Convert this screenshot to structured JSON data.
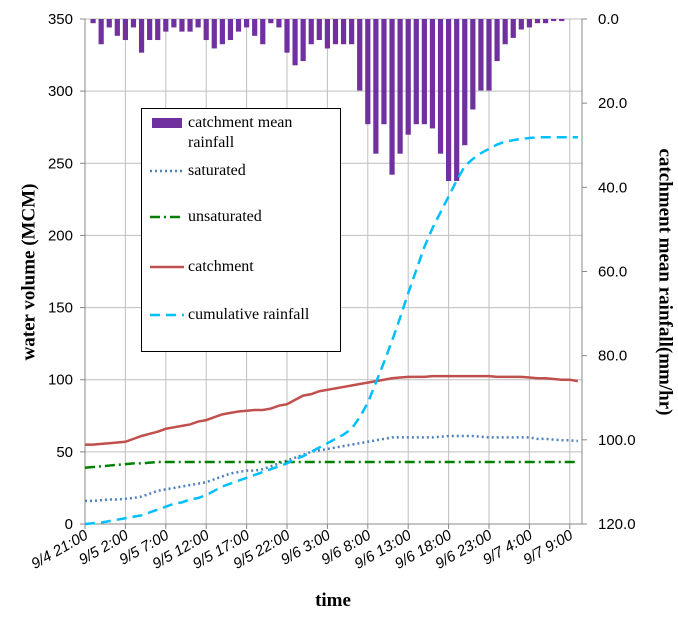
{
  "chart_data": {
    "type": "combo",
    "x_label": "time",
    "y_label": "water volume (MCM)",
    "y2_label": "catchment  mean rainfall(mm/hr)",
    "categories": [
      "9/4 21:00",
      null,
      null,
      null,
      null,
      "9/5 2:00",
      null,
      null,
      null,
      null,
      "9/5 7:00",
      null,
      null,
      null,
      null,
      "9/5 12:00",
      null,
      null,
      null,
      null,
      "9/5 17:00",
      null,
      null,
      null,
      null,
      "9/5 22:00",
      null,
      null,
      null,
      null,
      "9/6 3:00",
      null,
      null,
      null,
      null,
      "9/6 8:00",
      null,
      null,
      null,
      null,
      "9/6 13:00",
      null,
      null,
      null,
      null,
      "9/6 18:00",
      null,
      null,
      null,
      null,
      "9/6 23:00",
      null,
      null,
      null,
      null,
      "9/7 4:00",
      null,
      null,
      null,
      null,
      "9/7 9:00",
      null
    ],
    "ylim": [
      0,
      350
    ],
    "yticks": [
      0,
      50,
      100,
      150,
      200,
      250,
      300,
      350
    ],
    "y2lim": [
      0,
      120
    ],
    "y2_inverted": true,
    "y2ticks": [
      {
        "value": 0,
        "label": "0.0"
      },
      {
        "value": 20,
        "label": "20.0"
      },
      {
        "value": 40,
        "label": "40.0"
      },
      {
        "value": 60,
        "label": "60.0"
      },
      {
        "value": 80,
        "label": "80.0"
      },
      {
        "value": 100,
        "label": "100.0"
      },
      {
        "value": 120,
        "label": "120.0"
      }
    ],
    "grid": true,
    "series": [
      {
        "name": "catchment mean rainfall",
        "type": "bar",
        "axis": "y2",
        "color": "#7030a0",
        "values": [
          0,
          1,
          6,
          2,
          4,
          5,
          2,
          8,
          5,
          5,
          3,
          2,
          3,
          3,
          2,
          5,
          7,
          6,
          5,
          3,
          2,
          4,
          6,
          1,
          2,
          8,
          11,
          10,
          6,
          5,
          7,
          6,
          6,
          6,
          17,
          25,
          32,
          25,
          37,
          32,
          27.5,
          25,
          25,
          26,
          32,
          38.5,
          38.5,
          30,
          21.5,
          17,
          17,
          10,
          6,
          4.5,
          2.5,
          2,
          1,
          1,
          0.5,
          0.5,
          0,
          0
        ]
      },
      {
        "name": "saturated",
        "type": "line",
        "dash": "dotted",
        "color": "#4f81bd",
        "values": [
          16,
          16,
          16.5,
          17,
          17,
          17.5,
          18,
          19,
          21,
          23,
          24,
          25,
          26,
          27,
          28,
          29,
          31,
          33,
          35,
          36,
          37,
          37,
          38,
          40,
          42,
          44,
          46,
          48,
          50,
          51,
          52,
          53,
          54,
          55,
          56,
          57,
          58,
          59,
          60,
          60,
          60,
          60,
          60,
          60,
          60.5,
          61,
          61,
          61,
          61,
          60.5,
          60,
          60,
          60,
          60,
          60,
          60,
          59,
          59,
          58.5,
          58,
          58,
          57.5
        ]
      },
      {
        "name": "unsaturated",
        "type": "line",
        "dash": "dashdot",
        "color": "#008000",
        "values": [
          39,
          39.5,
          40,
          40.5,
          41,
          41.5,
          42,
          42,
          42.5,
          43,
          43,
          43,
          43,
          43,
          43,
          43,
          43,
          43,
          43,
          43,
          43,
          43,
          43,
          43,
          43,
          43,
          43,
          43,
          43,
          43,
          43,
          43,
          43,
          43,
          43,
          43,
          43,
          43,
          43,
          43,
          43,
          43,
          43,
          43,
          43,
          43,
          43,
          43,
          43,
          43,
          43,
          43,
          43,
          43,
          43,
          43,
          43,
          43,
          43,
          43,
          43,
          43
        ]
      },
      {
        "name": "catchment",
        "type": "line",
        "dash": "solid",
        "color": "#c0504d",
        "values": [
          55,
          55,
          55.5,
          56,
          56.5,
          57,
          59,
          61,
          62.5,
          64,
          66,
          67,
          68,
          69,
          71,
          72,
          74,
          76,
          77,
          78,
          78.5,
          79,
          79,
          80,
          82,
          83,
          86,
          89,
          90,
          92,
          93,
          94,
          95,
          96,
          97,
          98,
          99,
          100,
          101,
          101.5,
          102,
          102,
          102,
          102.5,
          102.5,
          102.5,
          102.5,
          102.5,
          102.5,
          102.5,
          102.5,
          102,
          102,
          102,
          102,
          101.5,
          101,
          101,
          100.5,
          100,
          100,
          99
        ]
      },
      {
        "name": "cumulative rainfall",
        "type": "line",
        "dash": "dashed",
        "color": "#00bfff",
        "values": [
          0,
          0.5,
          1,
          2,
          3,
          4,
          5,
          6,
          8,
          10,
          12,
          14,
          15,
          17,
          18,
          20,
          23,
          26,
          28,
          30,
          32,
          34,
          36,
          38,
          40,
          42,
          45,
          47,
          50,
          53,
          56,
          59,
          62,
          66,
          74,
          84,
          98,
          112,
          127,
          143,
          160,
          176,
          192,
          205,
          216,
          227,
          238,
          248,
          253,
          257,
          260,
          263,
          265,
          266,
          267,
          267.5,
          268,
          268,
          268,
          268,
          268,
          268
        ]
      }
    ]
  }
}
